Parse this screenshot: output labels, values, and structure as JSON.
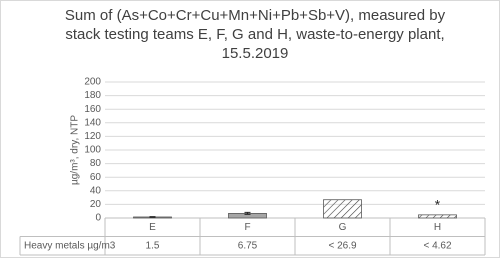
{
  "chart_data": {
    "type": "bar",
    "title": "Sum of (As+Co+Cr+Cu+Mn+Ni+Pb+Sb+V), measured by stack testing teams E, F, G and H, waste-to-energy plant, 15.5.2019",
    "y_label": "µg/m³, dry, NTP",
    "categories": [
      "E",
      "F",
      "G",
      "H"
    ],
    "series": [
      {
        "name": "Heavy metals µg/m3",
        "color": "#a6a6a6",
        "values": [
          1.5,
          6.75,
          26.9,
          4.62
        ],
        "value_labels": [
          "1.5",
          "6.75",
          "< 26.9",
          "<  4.62"
        ],
        "errors": [
          0.5,
          1.5,
          null,
          null
        ],
        "hatched": [
          false,
          false,
          true,
          true
        ]
      }
    ],
    "annotation": "*",
    "ylim": [
      0,
      200
    ],
    "yticks": [
      0,
      20,
      40,
      60,
      80,
      100,
      120,
      140,
      160,
      180,
      200
    ],
    "grid": true
  }
}
